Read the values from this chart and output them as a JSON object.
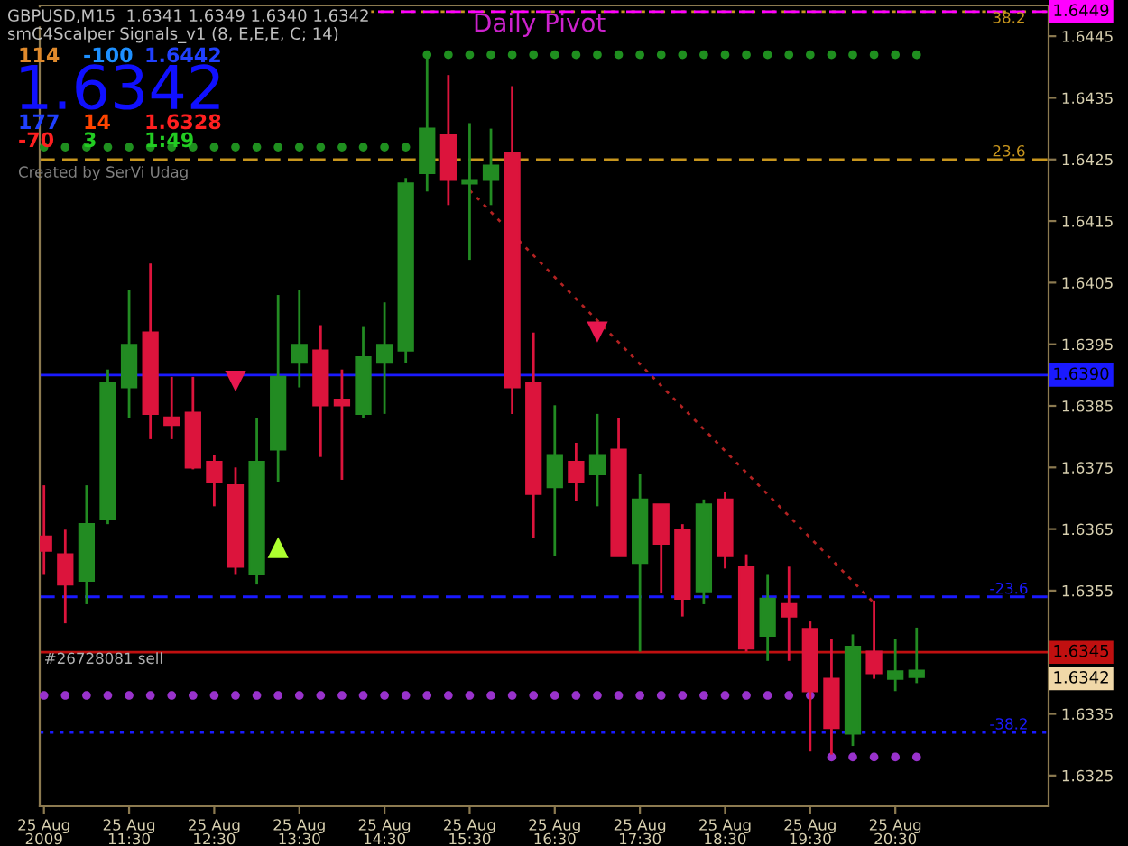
{
  "chart_data": {
    "type": "candlestick",
    "title": "GBPUSD,M15  1.6341 1.6349 1.6340 1.6342",
    "x": [
      "2009-08-25T10:30",
      "2009-08-25T10:45",
      "2009-08-25T11:00",
      "2009-08-25T11:15",
      "2009-08-25T11:30",
      "2009-08-25T11:45",
      "2009-08-25T12:00",
      "2009-08-25T12:15",
      "2009-08-25T12:30",
      "2009-08-25T12:45",
      "2009-08-25T13:00",
      "2009-08-25T13:15",
      "2009-08-25T13:30",
      "2009-08-25T13:45",
      "2009-08-25T14:00",
      "2009-08-25T14:15",
      "2009-08-25T14:30",
      "2009-08-25T14:45",
      "2009-08-25T15:00",
      "2009-08-25T15:15",
      "2009-08-25T15:30",
      "2009-08-25T15:45",
      "2009-08-25T16:00",
      "2009-08-25T16:15",
      "2009-08-25T16:30",
      "2009-08-25T16:45",
      "2009-08-25T17:00",
      "2009-08-25T17:15",
      "2009-08-25T17:30",
      "2009-08-25T17:45",
      "2009-08-25T18:00",
      "2009-08-25T18:15",
      "2009-08-25T18:30",
      "2009-08-25T18:45",
      "2009-08-25T19:00",
      "2009-08-25T19:15",
      "2009-08-25T19:30",
      "2009-08-25T19:45",
      "2009-08-25T20:00",
      "2009-08-25T20:15",
      "2009-08-25T20:30",
      "2009-08-25T20:45"
    ],
    "ohlc": [
      [
        1.63638,
        1.63721,
        1.63577,
        1.63615
      ],
      [
        1.63609,
        1.63649,
        1.63497,
        1.6356
      ],
      [
        1.63566,
        1.63721,
        1.63528,
        1.63658
      ],
      [
        1.63667,
        1.63909,
        1.63658,
        1.63888
      ],
      [
        1.6388,
        1.64038,
        1.63831,
        1.63949
      ],
      [
        1.63969,
        1.64081,
        1.63796,
        1.63837
      ],
      [
        1.63831,
        1.63897,
        1.63796,
        1.63819
      ],
      [
        1.63839,
        1.63897,
        1.63747,
        1.6375
      ],
      [
        1.63759,
        1.6377,
        1.63687,
        1.63727
      ],
      [
        1.63721,
        1.6375,
        1.63577,
        1.63589
      ],
      [
        1.63577,
        1.63831,
        1.6356,
        1.63759
      ],
      [
        1.63779,
        1.6403,
        1.63727,
        1.63897
      ],
      [
        1.6392,
        1.64038,
        1.6388,
        1.63949
      ],
      [
        1.6394,
        1.63981,
        1.63767,
        1.63851
      ],
      [
        1.6386,
        1.63909,
        1.6373,
        1.63851
      ],
      [
        1.63837,
        1.63978,
        1.63831,
        1.63929
      ],
      [
        1.6392,
        1.64018,
        1.63837,
        1.63949
      ],
      [
        1.6394,
        1.6422,
        1.6392,
        1.64211
      ],
      [
        1.64228,
        1.64415,
        1.64198,
        1.643
      ],
      [
        1.64289,
        1.64387,
        1.64176,
        1.64217
      ],
      [
        1.64211,
        1.64309,
        1.64087,
        1.64215
      ],
      [
        1.64217,
        1.643,
        1.64176,
        1.6424
      ],
      [
        1.6426,
        1.64369,
        1.63837,
        1.6388
      ],
      [
        1.63888,
        1.63969,
        1.63635,
        1.63707
      ],
      [
        1.63718,
        1.63851,
        1.63606,
        1.6377
      ],
      [
        1.63759,
        1.6379,
        1.63695,
        1.63727
      ],
      [
        1.63739,
        1.63837,
        1.63687,
        1.6377
      ],
      [
        1.63779,
        1.63831,
        1.63606,
        1.63606
      ],
      [
        1.63595,
        1.63739,
        1.63451,
        1.63698
      ],
      [
        1.6369,
        1.6369,
        1.63546,
        1.63626
      ],
      [
        1.63649,
        1.63658,
        1.63508,
        1.63537
      ],
      [
        1.63549,
        1.63698,
        1.63528,
        1.6369
      ],
      [
        1.63698,
        1.6371,
        1.63586,
        1.63606
      ],
      [
        1.63589,
        1.63609,
        1.63451,
        1.63456
      ],
      [
        1.63477,
        1.63577,
        1.63436,
        1.63537
      ],
      [
        1.63528,
        1.63589,
        1.63436,
        1.63508
      ],
      [
        1.63488,
        1.635,
        1.63289,
        1.63387
      ],
      [
        1.63407,
        1.63471,
        1.63284,
        1.63327
      ],
      [
        1.63318,
        1.63479,
        1.63298,
        1.63459
      ],
      [
        1.63451,
        1.63534,
        1.63407,
        1.63416
      ],
      [
        1.63407,
        1.63471,
        1.63387,
        1.63419
      ],
      [
        1.6341,
        1.6349,
        1.634,
        1.6342
      ]
    ],
    "colors": [
      "#dc143c",
      "#dc143c",
      "#228b22",
      "#228b22",
      "#228b22",
      "#dc143c",
      "#dc143c",
      "#dc143c",
      "#dc143c",
      "#dc143c",
      "#228b22",
      "#228b22",
      "#228b22",
      "#dc143c",
      "#dc143c",
      "#228b22",
      "#228b22",
      "#228b22",
      "#228b22",
      "#dc143c",
      "#228b22",
      "#228b22",
      "#dc143c",
      "#dc143c",
      "#228b22",
      "#dc143c",
      "#228b22",
      "#dc143c",
      "#228b22",
      "#dc143c",
      "#dc143c",
      "#228b22",
      "#dc143c",
      "#dc143c",
      "#228b22",
      "#dc143c",
      "#dc143c",
      "#dc143c",
      "#228b22",
      "#dc143c",
      "#228b22",
      "#228b22"
    ],
    "series": [
      {
        "type": "scatter",
        "marker": "circle",
        "color": "#1f8f1f",
        "x": [
          "2009-08-25T10:30",
          "2009-08-25T10:45",
          "2009-08-25T11:00",
          "2009-08-25T11:15",
          "2009-08-25T11:30",
          "2009-08-25T11:45",
          "2009-08-25T12:00",
          "2009-08-25T12:15",
          "2009-08-25T12:30",
          "2009-08-25T12:45",
          "2009-08-25T13:00",
          "2009-08-25T13:15",
          "2009-08-25T13:30",
          "2009-08-25T13:45",
          "2009-08-25T14:00",
          "2009-08-25T14:15",
          "2009-08-25T14:30",
          "2009-08-25T14:45"
        ],
        "values": [
          1.6427,
          1.6427,
          1.6427,
          1.6427,
          1.6427,
          1.6427,
          1.6427,
          1.6427,
          1.6427,
          1.6427,
          1.6427,
          1.6427,
          1.6427,
          1.6427,
          1.6427,
          1.6427,
          1.6427,
          1.6427
        ]
      },
      {
        "type": "scatter",
        "marker": "circle",
        "color": "#1f8f1f",
        "x": [
          "2009-08-25T15:00",
          "2009-08-25T15:15",
          "2009-08-25T15:30",
          "2009-08-25T15:45",
          "2009-08-25T16:00",
          "2009-08-25T16:15",
          "2009-08-25T16:30",
          "2009-08-25T16:45",
          "2009-08-25T17:00",
          "2009-08-25T17:15",
          "2009-08-25T17:30",
          "2009-08-25T17:45",
          "2009-08-25T18:00",
          "2009-08-25T18:15",
          "2009-08-25T18:30",
          "2009-08-25T18:45",
          "2009-08-25T19:00",
          "2009-08-25T19:15",
          "2009-08-25T19:30",
          "2009-08-25T19:45",
          "2009-08-25T20:00",
          "2009-08-25T20:15",
          "2009-08-25T20:30",
          "2009-08-25T20:45"
        ],
        "values": [
          1.6442,
          1.6442,
          1.6442,
          1.6442,
          1.6442,
          1.6442,
          1.6442,
          1.6442,
          1.6442,
          1.6442,
          1.6442,
          1.6442,
          1.6442,
          1.6442,
          1.6442,
          1.6442,
          1.6442,
          1.6442,
          1.6442,
          1.6442,
          1.6442,
          1.6442,
          1.6442,
          1.6442
        ]
      },
      {
        "type": "scatter",
        "marker": "circle",
        "color": "#9932cc",
        "x": [
          "2009-08-25T10:30",
          "2009-08-25T10:45",
          "2009-08-25T11:00",
          "2009-08-25T11:15",
          "2009-08-25T11:30",
          "2009-08-25T11:45",
          "2009-08-25T12:00",
          "2009-08-25T12:15",
          "2009-08-25T12:30",
          "2009-08-25T12:45",
          "2009-08-25T13:00",
          "2009-08-25T13:15",
          "2009-08-25T13:30",
          "2009-08-25T13:45",
          "2009-08-25T14:00",
          "2009-08-25T14:15",
          "2009-08-25T14:30",
          "2009-08-25T14:45",
          "2009-08-25T15:00",
          "2009-08-25T15:15",
          "2009-08-25T15:30",
          "2009-08-25T15:45",
          "2009-08-25T16:00",
          "2009-08-25T16:15",
          "2009-08-25T16:30",
          "2009-08-25T16:45",
          "2009-08-25T17:00",
          "2009-08-25T17:15",
          "2009-08-25T17:30",
          "2009-08-25T17:45",
          "2009-08-25T18:00",
          "2009-08-25T18:15",
          "2009-08-25T18:30",
          "2009-08-25T18:45",
          "2009-08-25T19:00",
          "2009-08-25T19:15",
          "2009-08-25T19:30"
        ],
        "values": [
          1.6338,
          1.6338,
          1.6338,
          1.6338,
          1.6338,
          1.6338,
          1.6338,
          1.6338,
          1.6338,
          1.6338,
          1.6338,
          1.6338,
          1.6338,
          1.6338,
          1.6338,
          1.6338,
          1.6338,
          1.6338,
          1.6338,
          1.6338,
          1.6338,
          1.6338,
          1.6338,
          1.6338,
          1.6338,
          1.6338,
          1.6338,
          1.6338,
          1.6338,
          1.6338,
          1.6338,
          1.6338,
          1.6338,
          1.6338,
          1.6338,
          1.6338,
          1.6338
        ]
      },
      {
        "type": "scatter",
        "marker": "circle",
        "color": "#9932cc",
        "x": [
          "2009-08-25T19:45",
          "2009-08-25T20:00",
          "2009-08-25T20:15",
          "2009-08-25T20:30",
          "2009-08-25T20:45"
        ],
        "values": [
          1.6328,
          1.6328,
          1.6328,
          1.6328,
          1.6328
        ]
      },
      {
        "type": "line",
        "marker": "none",
        "line_style": "dotted",
        "color": "#b22222",
        "x": [
          "2009-08-25T15:30",
          "2009-08-25T20:15"
        ],
        "values": [
          1.642,
          1.6353
        ]
      },
      {
        "type": "scatter",
        "marker": "triangle_down",
        "color": "#e8174f",
        "x": [
          "2009-08-25T12:45",
          "2009-08-25T17:00"
        ],
        "values": [
          1.6389,
          1.6397
        ]
      },
      {
        "type": "scatter",
        "marker": "triangle",
        "color": "#adff2f",
        "x": [
          "2009-08-25T13:15"
        ],
        "values": [
          1.6362
        ]
      }
    ],
    "ref_lines": [
      {
        "axis": "y",
        "value": 1.6449,
        "color": "#c8961e",
        "line_style": "dotted"
      },
      {
        "axis": "y",
        "value": 1.6449,
        "label": "1.6449",
        "color": "#ff00ff",
        "line_style": "dashed"
      },
      {
        "axis": "y",
        "value": 1.6425,
        "color": "#c8961e",
        "line_style": "dashed"
      },
      {
        "axis": "y",
        "value": 1.639,
        "label": "1.6390",
        "color": "#1a1aff",
        "line_style": "solid"
      },
      {
        "axis": "y",
        "value": 1.6354,
        "color": "#1a1aff",
        "line_style": "dashed"
      },
      {
        "axis": "y",
        "value": 1.6345,
        "label": "1.6345",
        "color": "#c01010",
        "line_style": "solid"
      },
      {
        "axis": "y",
        "value": 1.6332,
        "color": "#1a1aff",
        "line_style": "dotted"
      }
    ],
    "annotations": [
      "smC4Scalper Signals_v1 (8, E,E,E, C; 14)",
      "114",
      "-100",
      "1.6442",
      "1.6342",
      "177",
      "14",
      "1.6328",
      "-70",
      "3",
      "1:49",
      "Created by SerVi Udag",
      "Daily Pivot",
      "1.6342",
      {
        "text": "#26728081 sell",
        "x": "2009-08-25T10:30",
        "y": 1.6345
      },
      {
        "text": "38.2",
        "x": "2009-08-25T21:50",
        "y": 1.6449
      },
      {
        "text": "23.6",
        "x": "2009-08-25T21:50",
        "y": 1.6425
      },
      {
        "text": "-23.6",
        "x": "2009-08-25T21:50",
        "y": 1.6354
      },
      {
        "text": "-38.2",
        "x": "2009-08-25T21:50",
        "y": 1.6332
      }
    ],
    "xlim": [
      "2009-08-25T10:27",
      "2009-08-25T22:18"
    ],
    "ylim": [
      1.632,
      1.645
    ],
    "xticks": [
      {
        "value": "2009-08-25T10:30",
        "label": "25 Aug 2009"
      },
      {
        "value": "2009-08-25T11:30",
        "label": "25 Aug 11:30"
      },
      {
        "value": "2009-08-25T12:30",
        "label": "25 Aug 12:30"
      },
      {
        "value": "2009-08-25T13:30",
        "label": "25 Aug 13:30"
      },
      {
        "value": "2009-08-25T14:30",
        "label": "25 Aug 14:30"
      },
      {
        "value": "2009-08-25T15:30",
        "label": "25 Aug 15:30"
      },
      {
        "value": "2009-08-25T16:30",
        "label": "25 Aug 16:30"
      },
      {
        "value": "2009-08-25T17:30",
        "label": "25 Aug 17:30"
      },
      {
        "value": "2009-08-25T18:30",
        "label": "25 Aug 18:30"
      },
      {
        "value": "2009-08-25T19:30",
        "label": "25 Aug 19:30"
      },
      {
        "value": "2009-08-25T20:30",
        "label": "25 Aug 20:30"
      }
    ],
    "yticks": [
      1.6325,
      1.6335,
      1.6345,
      1.6355,
      1.6365,
      1.6375,
      1.6385,
      1.6395,
      1.6405,
      1.6415,
      1.6425,
      1.6435,
      1.6445
    ],
    "grid": false,
    "legend": false
  }
}
